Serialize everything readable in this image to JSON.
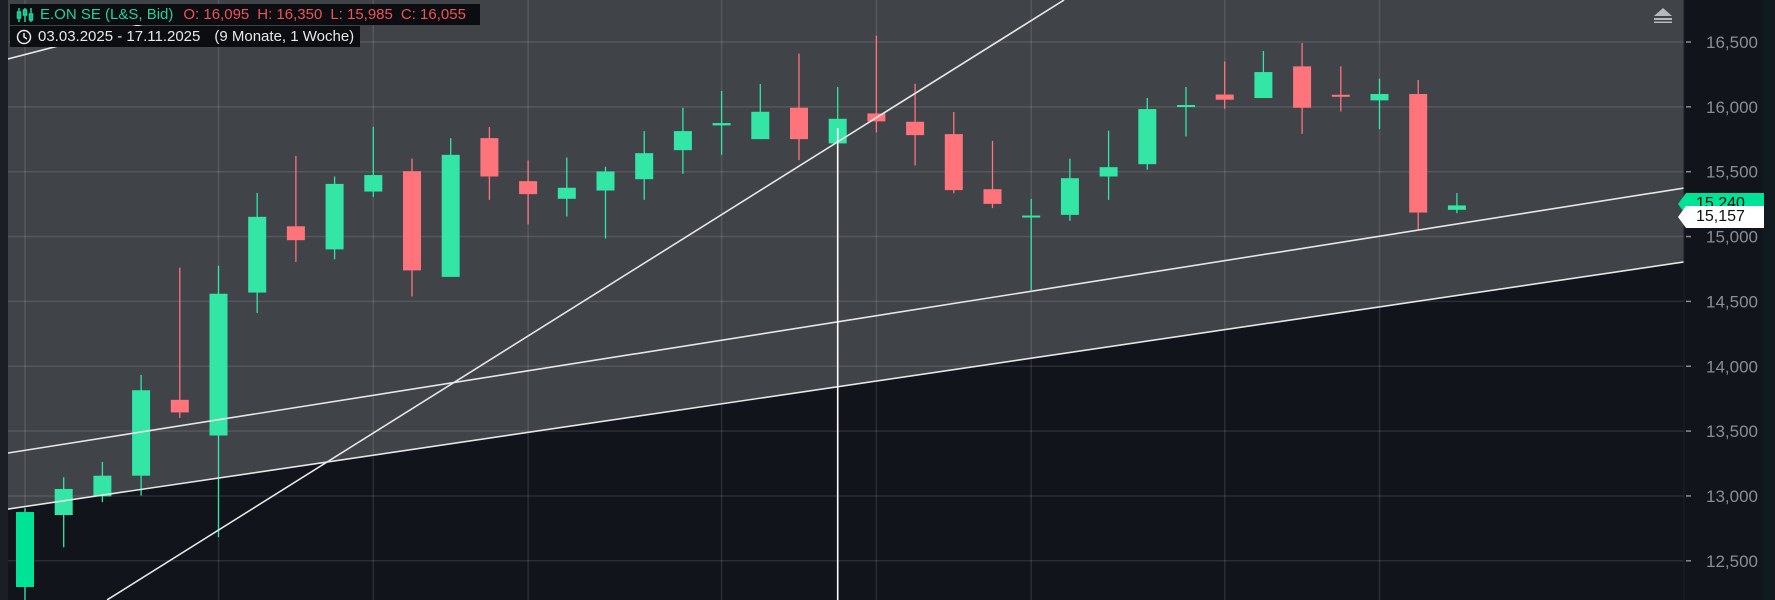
{
  "header": {
    "instrument": "E.ON SE (L&S, Bid)",
    "open_label": "O: 16,095",
    "high_label": "H: 16,350",
    "low_label": "L: 15,985",
    "close_label": "C: 16,055",
    "date_range": "03.03.2025 - 17.11.2025",
    "duration": "(9 Monate, 1 Woche)",
    "icons": {
      "chart_type": "candlestick-icon",
      "period": "clock-icon",
      "collapse": "collapse-panel-icon"
    }
  },
  "price_tags": {
    "last": "15,240",
    "crosshair": "15,157"
  },
  "colors": {
    "up": "#33e6a6",
    "down": "#ff737b",
    "panel": "#404348",
    "background": "#11141b",
    "last_price_tag": "#00e396"
  },
  "chart_data": {
    "type": "candlestick",
    "title": "E.ON SE (L&S, Bid)",
    "interval": "weekly",
    "ylim": [
      12100,
      16900
    ],
    "y_ticks": [
      "16,500",
      "16,000",
      "15,500",
      "15,000",
      "14,500",
      "14,000",
      "13,500",
      "13,000",
      "12,500"
    ],
    "y_tick_values": [
      16500,
      16000,
      15500,
      15000,
      14500,
      14000,
      13500,
      13000,
      12500
    ],
    "grid": true,
    "month_start_bars": [
      0,
      5,
      9,
      13,
      18,
      22,
      26,
      31,
      35
    ],
    "candles": [
      {
        "o": 12298,
        "h": 12905,
        "l": 12150,
        "c": 12876
      },
      {
        "o": 12853,
        "h": 13144,
        "l": 12604,
        "c": 13054
      },
      {
        "o": 12997,
        "h": 13263,
        "l": 12953,
        "c": 13156
      },
      {
        "o": 13156,
        "h": 13933,
        "l": 13003,
        "c": 13815
      },
      {
        "o": 13741,
        "h": 14760,
        "l": 13602,
        "c": 13644
      },
      {
        "o": 13466,
        "h": 14775,
        "l": 12683,
        "c": 14559
      },
      {
        "o": 14568,
        "h": 15336,
        "l": 14411,
        "c": 15152
      },
      {
        "o": 15079,
        "h": 15622,
        "l": 14804,
        "c": 14972
      },
      {
        "o": 14901,
        "h": 15463,
        "l": 14825,
        "c": 15406
      },
      {
        "o": 15347,
        "h": 15846,
        "l": 15306,
        "c": 15474
      },
      {
        "o": 15504,
        "h": 15601,
        "l": 14538,
        "c": 14739
      },
      {
        "o": 14689,
        "h": 15759,
        "l": 14689,
        "c": 15630
      },
      {
        "o": 15759,
        "h": 15844,
        "l": 15283,
        "c": 15463
      },
      {
        "o": 15427,
        "h": 15587,
        "l": 15093,
        "c": 15327
      },
      {
        "o": 15291,
        "h": 15610,
        "l": 15154,
        "c": 15376
      },
      {
        "o": 15355,
        "h": 15538,
        "l": 14985,
        "c": 15502
      },
      {
        "o": 15442,
        "h": 15813,
        "l": 15283,
        "c": 15643
      },
      {
        "o": 15666,
        "h": 15993,
        "l": 15484,
        "c": 15813
      },
      {
        "o": 15857,
        "h": 16122,
        "l": 15630,
        "c": 15875
      },
      {
        "o": 15751,
        "h": 16176,
        "l": 15751,
        "c": 15962
      },
      {
        "o": 15993,
        "h": 16410,
        "l": 15589,
        "c": 15751
      },
      {
        "o": 15718,
        "h": 16153,
        "l": 15605,
        "c": 15908
      },
      {
        "o": 15949,
        "h": 16549,
        "l": 15803,
        "c": 15888
      },
      {
        "o": 15885,
        "h": 16178,
        "l": 15548,
        "c": 15782
      },
      {
        "o": 15790,
        "h": 15960,
        "l": 15334,
        "c": 15358
      },
      {
        "o": 15365,
        "h": 15738,
        "l": 15219,
        "c": 15252
      },
      {
        "o": 15147,
        "h": 15291,
        "l": 14588,
        "c": 15162
      },
      {
        "o": 15167,
        "h": 15600,
        "l": 15121,
        "c": 15450
      },
      {
        "o": 15463,
        "h": 15816,
        "l": 15283,
        "c": 15535
      },
      {
        "o": 15558,
        "h": 16068,
        "l": 15515,
        "c": 15983
      },
      {
        "o": 16003,
        "h": 16153,
        "l": 15772,
        "c": 16014
      },
      {
        "o": 16095,
        "h": 16350,
        "l": 15985,
        "c": 16055
      },
      {
        "o": 16068,
        "h": 16431,
        "l": 16068,
        "c": 16268
      },
      {
        "o": 16312,
        "h": 16492,
        "l": 15792,
        "c": 15993
      },
      {
        "o": 16093,
        "h": 16312,
        "l": 15965,
        "c": 16088
      },
      {
        "o": 16050,
        "h": 16217,
        "l": 15828,
        "c": 16099
      },
      {
        "o": 16099,
        "h": 16207,
        "l": 15046,
        "c": 15185
      },
      {
        "o": 15206,
        "h": 15335,
        "l": 15180,
        "c": 15240
      }
    ],
    "drawings": [
      {
        "kind": "trendline",
        "p1": {
          "bar": -0.44,
          "price": 13331
        },
        "p2": {
          "bar": 42.87,
          "price": 15374
        }
      },
      {
        "kind": "trendline",
        "p1": {
          "bar": -0.44,
          "price": 12899
        },
        "p2": {
          "bar": 42.87,
          "price": 14804
        },
        "shade_below": true
      },
      {
        "kind": "trendline",
        "p1": {
          "bar": 2.12,
          "price": 12198
        },
        "p2": {
          "bar": 26.85,
          "price": 16824
        }
      },
      {
        "kind": "trendline",
        "p1": {
          "bar": -0.44,
          "price": 16369
        },
        "p2": {
          "bar": 3.75,
          "price": 16693
        }
      },
      {
        "kind": "vertical",
        "bar": 21,
        "price": 15837
      }
    ]
  }
}
